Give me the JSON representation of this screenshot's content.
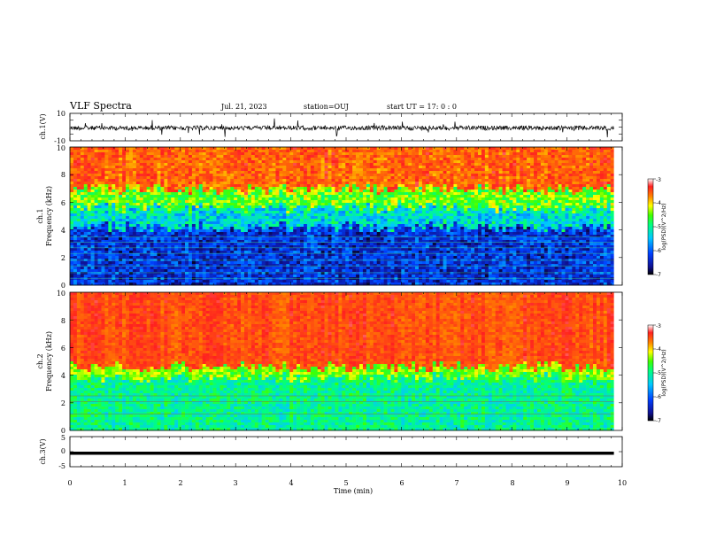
{
  "header": {
    "title": "VLF Spectra",
    "date": "Jul. 21, 2023",
    "station": "station=OUJ",
    "start": "start UT =  17: 0  : 0"
  },
  "colors": {
    "colormap": [
      "#000000",
      "#1010a0",
      "#0040ff",
      "#00c8ff",
      "#00ff80",
      "#40ff00",
      "#ffff00",
      "#ff8000",
      "#ff2020",
      "#ffffff"
    ],
    "waveform": "#000000"
  },
  "chart_data": [
    {
      "type": "line",
      "ylabel": "ch.1(V)",
      "ylim": [
        -10,
        10
      ],
      "yticks": [
        "10",
        "-10"
      ],
      "xlim": [
        0,
        10
      ],
      "description_values": {
        "baseline": 0,
        "typical_amplitude": 2,
        "spike_amplitude": 7
      }
    },
    {
      "type": "heatmap",
      "ylabel_line1": "ch.1",
      "ylabel_line2": "Frequency (kHz)",
      "ylim": [
        0,
        10
      ],
      "yticks": [
        "0",
        "2",
        "4",
        "6",
        "8",
        "10"
      ],
      "xlim": [
        0,
        9.85
      ],
      "colorbar": {
        "label": "log(PSD)(V^2/Hz)",
        "range": [
          -7,
          -3
        ],
        "ticks": [
          "-3",
          "-4",
          "-5",
          "-6",
          "-7"
        ]
      },
      "band_boundaries_khz": {
        "low_band_top": 4.2,
        "transition_top": 5.6,
        "red_above": 7.0
      },
      "psd_levels": {
        "below_4khz": -6.3,
        "4_to_5_khz": -5.3,
        "5_to_7_khz": -4.5,
        "above_7_khz": -3.6
      }
    },
    {
      "type": "heatmap",
      "ylabel_line1": "ch.2",
      "ylabel_line2": "Frequency (kHz)",
      "ylim": [
        0,
        10
      ],
      "yticks": [
        "0",
        "2",
        "4",
        "6",
        "8",
        "10"
      ],
      "xlim": [
        0,
        9.85
      ],
      "colorbar": {
        "label": "log(PSD)(V^2/Hz)",
        "range": [
          -7,
          -3
        ],
        "ticks": [
          "-3",
          "-4",
          "-5",
          "-6",
          "-7"
        ]
      },
      "band_boundaries_khz": {
        "low_band_top": 3.8,
        "transition_top": 4.6
      },
      "psd_levels": {
        "below_4khz": -5.0,
        "4_to_5_khz": -4.4,
        "above_5_khz": -3.5
      }
    },
    {
      "type": "line",
      "ylabel": "ch.3(V)",
      "ylim": [
        -5,
        5
      ],
      "yticks": [
        "5",
        "0",
        "-5"
      ],
      "xlim": [
        0,
        9.85
      ],
      "description_values": {
        "baseline": -0.5
      }
    }
  ],
  "xaxis": {
    "label": "Time (min)",
    "ticks": [
      "0",
      "1",
      "2",
      "3",
      "4",
      "5",
      "6",
      "7",
      "8",
      "9",
      "10"
    ]
  }
}
